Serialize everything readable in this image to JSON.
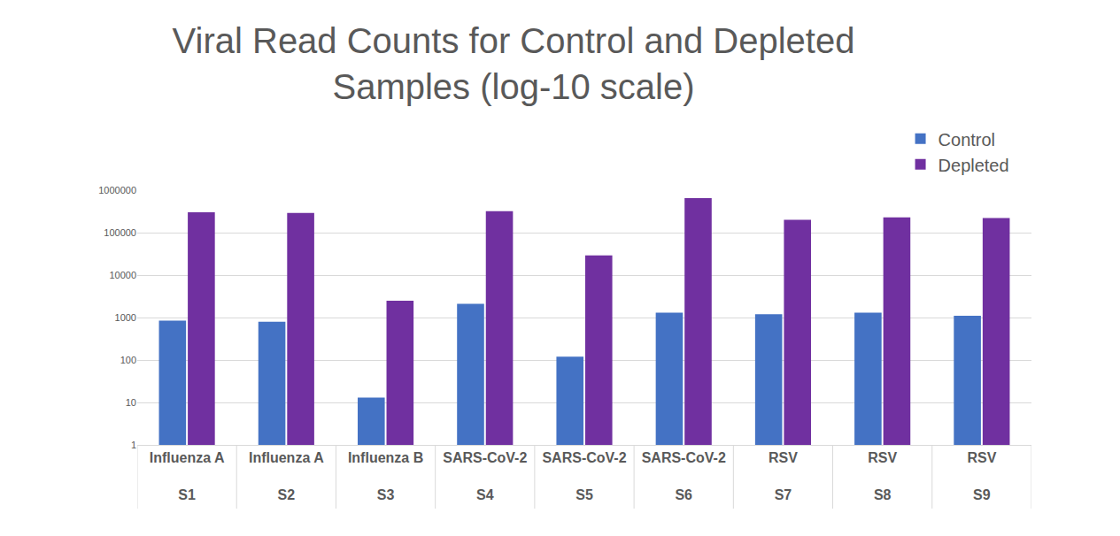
{
  "chart_data": {
    "type": "bar",
    "title": "Viral Read Counts for Control and Depleted Samples (log-10 scale)",
    "categories": [
      [
        "Influenza A",
        "S1"
      ],
      [
        "Influenza A",
        "S2"
      ],
      [
        "Influenza B",
        "S3"
      ],
      [
        "SARS-CoV-2",
        "S4"
      ],
      [
        "SARS-CoV-2",
        "S5"
      ],
      [
        "SARS-CoV-2",
        "S6"
      ],
      [
        "RSV",
        "S7"
      ],
      [
        "RSV",
        "S8"
      ],
      [
        "RSV",
        "S9"
      ]
    ],
    "series": [
      {
        "name": "Control",
        "color": "#4472c4",
        "values": [
          850,
          800,
          13,
          2100,
          120,
          1300,
          1200,
          1300,
          1100
        ]
      },
      {
        "name": "Depleted",
        "color": "#7030a0",
        "values": [
          300000,
          290000,
          2500,
          320000,
          29000,
          650000,
          200000,
          230000,
          220000
        ]
      }
    ],
    "ylim": [
      1,
      1000000
    ],
    "yticks": [
      1,
      10,
      100,
      1000,
      10000,
      100000,
      1000000
    ],
    "log": "y",
    "grid": true,
    "legend": "upper right"
  }
}
